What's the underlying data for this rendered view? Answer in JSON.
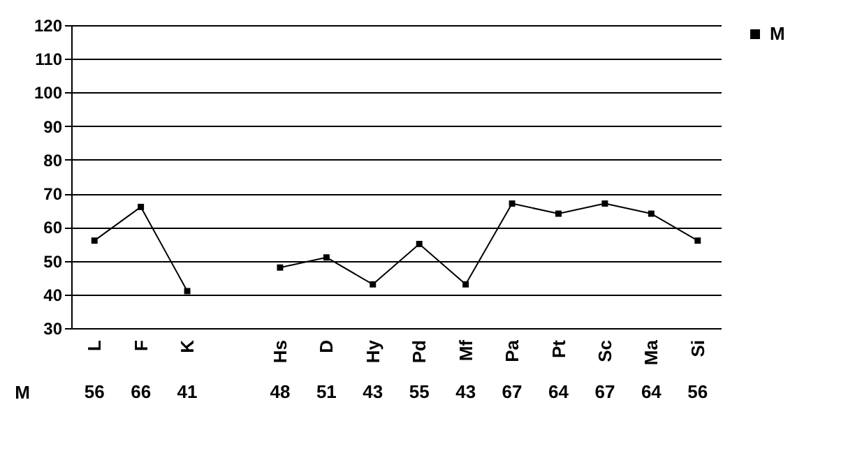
{
  "chart_data": {
    "type": "line",
    "categories": [
      "L",
      "F",
      "K",
      null,
      "Hs",
      "D",
      "Hy",
      "Pd",
      "Mf",
      "Pa",
      "Pt",
      "Sc",
      "Ma",
      "Si"
    ],
    "series": [
      {
        "name": "M",
        "color": "#000000",
        "values": [
          56,
          66,
          41,
          null,
          48,
          51,
          43,
          55,
          43,
          67,
          64,
          67,
          64,
          56
        ]
      }
    ],
    "ylim": [
      30,
      120
    ],
    "yticks": [
      30,
      40,
      50,
      60,
      70,
      80,
      90,
      100,
      110,
      120
    ],
    "grid": "y",
    "legend": "right",
    "marker": "square",
    "data_labels": true
  }
}
